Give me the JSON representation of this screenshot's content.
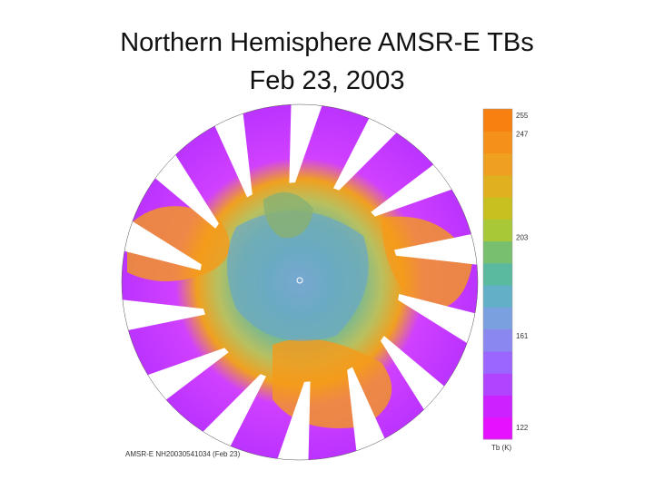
{
  "title": {
    "line1": "Northern Hemisphere AMSR-E TBs",
    "line2": "Feb 23, 2003"
  },
  "colorbar": {
    "ticks": [
      {
        "label": "255",
        "value": 255
      },
      {
        "label": "247",
        "value": 247
      },
      {
        "label": "203",
        "value": 203
      },
      {
        "label": "161",
        "value": 161
      },
      {
        "label": "122",
        "value": 122
      }
    ],
    "unit": "Tb (K)",
    "colors": [
      "#e611ff",
      "#cc22ff",
      "#b044ff",
      "#9a66ff",
      "#8a88f0",
      "#7aa0e0",
      "#62b0c8",
      "#5abaa0",
      "#78c070",
      "#a8c838",
      "#c8c020",
      "#e0b020",
      "#f0a020",
      "#f59018",
      "#f88010"
    ]
  },
  "caption": "AMSR-E NH20030541034 (Feb 23)",
  "map": {
    "projection": "north-polar-stereographic",
    "colors": {
      "ocean_high_tb": "#f59a1a",
      "land_mid_tb": "#78b8a0",
      "low_tb": "#cc33ff",
      "gap": "#ffffff"
    }
  }
}
